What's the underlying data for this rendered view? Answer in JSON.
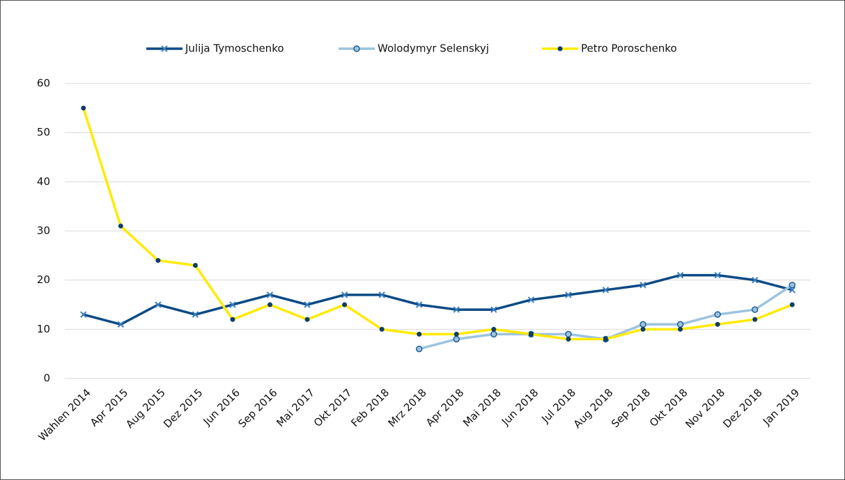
{
  "chart_data": {
    "type": "line",
    "categories": [
      "Wahlen 2014",
      "Apr 2015",
      "Aug 2015",
      "Dez 2015",
      "Jun 2016",
      "Sep 2016",
      "Mai 2017",
      "Okt 2017",
      "Feb 2018",
      "Mrz 2018",
      "Apr 2018",
      "Mai 2018",
      "Jun 2018",
      "Jul 2018",
      "Aug 2018",
      "Sep 2018",
      "Okt 2018",
      "Nov 2018",
      "Dez 2018",
      "Jan 2019"
    ],
    "series": [
      {
        "name": "Julija Tymoschenko",
        "color": "#0b4a85",
        "marker": "x",
        "marker_color": "#3a7fc0",
        "values": [
          13,
          11,
          15,
          13,
          15,
          17,
          15,
          17,
          17,
          15,
          14,
          14,
          16,
          17,
          18,
          19,
          21,
          21,
          20,
          18
        ]
      },
      {
        "name": "Wolodymyr Selenskyj",
        "color": "#9cc3de",
        "marker": "circle",
        "marker_color": "#1f5e96",
        "values": [
          null,
          null,
          null,
          null,
          null,
          null,
          null,
          null,
          null,
          6,
          8,
          9,
          9,
          9,
          8,
          11,
          11,
          13,
          14,
          19
        ]
      },
      {
        "name": "Petro Poroschenko",
        "color": "#ffea00",
        "marker": "dot",
        "marker_color": "#0d3d6c",
        "values": [
          55,
          31,
          24,
          23,
          12,
          15,
          12,
          15,
          10,
          9,
          9,
          10,
          9,
          8,
          8,
          10,
          10,
          11,
          12,
          15
        ]
      }
    ],
    "ylim": [
      0,
      60
    ],
    "yticks": [
      0,
      10,
      20,
      30,
      40,
      50,
      60
    ],
    "grid": true,
    "legend": "top"
  }
}
